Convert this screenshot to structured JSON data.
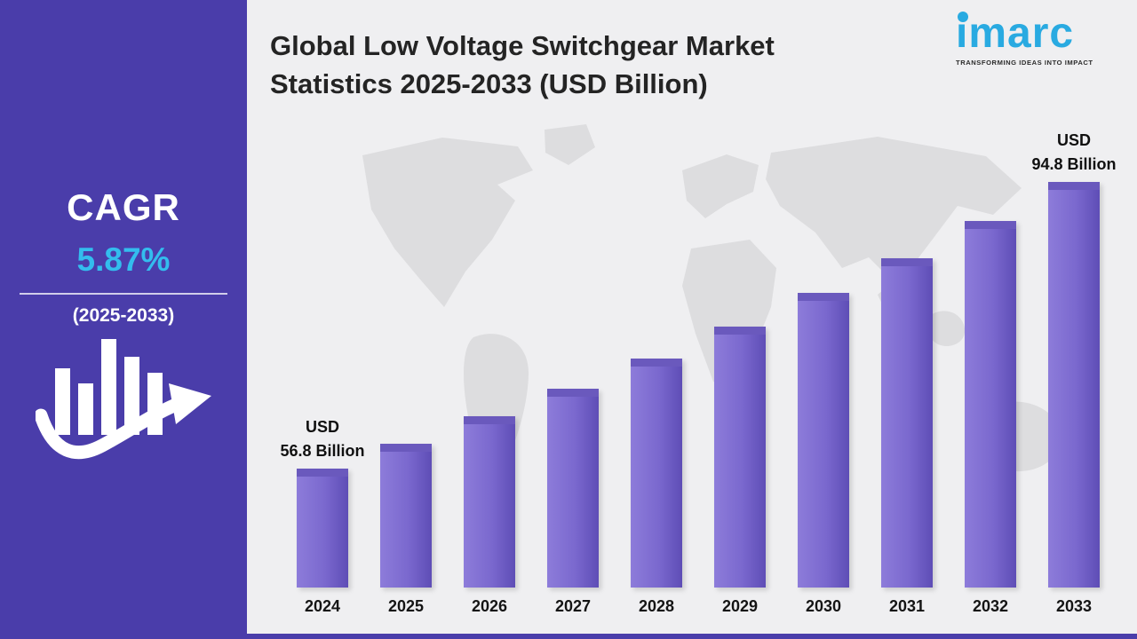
{
  "sidebar": {
    "cagr_label": "CAGR",
    "cagr_value": "5.87%",
    "cagr_period": "(2025-2033)"
  },
  "header": {
    "title_line1": "Global Low Voltage Switchgear Market",
    "title_line2": "Statistics 2025-2033 (USD Billion)"
  },
  "logo": {
    "word": "imarc",
    "tagline": "TRANSFORMING IDEAS INTO IMPACT",
    "color": "#29aae1"
  },
  "chart_data": {
    "type": "bar",
    "title": "Global Low Voltage Switchgear Market Statistics 2025-2033 (USD Billion)",
    "categories": [
      "2024",
      "2025",
      "2026",
      "2027",
      "2028",
      "2029",
      "2030",
      "2031",
      "2032",
      "2033"
    ],
    "values": [
      56.8,
      60.1,
      63.7,
      67.4,
      71.4,
      75.6,
      80.0,
      84.7,
      89.6,
      94.8
    ],
    "unit": "USD Billion",
    "cagr": "5.87%",
    "cagr_period": "2025-2033",
    "end_labels": {
      "first": [
        "USD",
        "56.8 Billion"
      ],
      "last": [
        "USD",
        "94.8 Billion"
      ]
    },
    "bar_color": "#7a68ce",
    "legend_position": "none",
    "grid": false,
    "ylim_visual": [
      41,
      96
    ]
  },
  "colors": {
    "sidebar_bg": "#4a3daa",
    "accent_cyan": "#33bdee",
    "bar_purple": "#7a68ce",
    "background": "#efeff1",
    "map_gray": "#dddddf",
    "title_text": "#242424"
  }
}
